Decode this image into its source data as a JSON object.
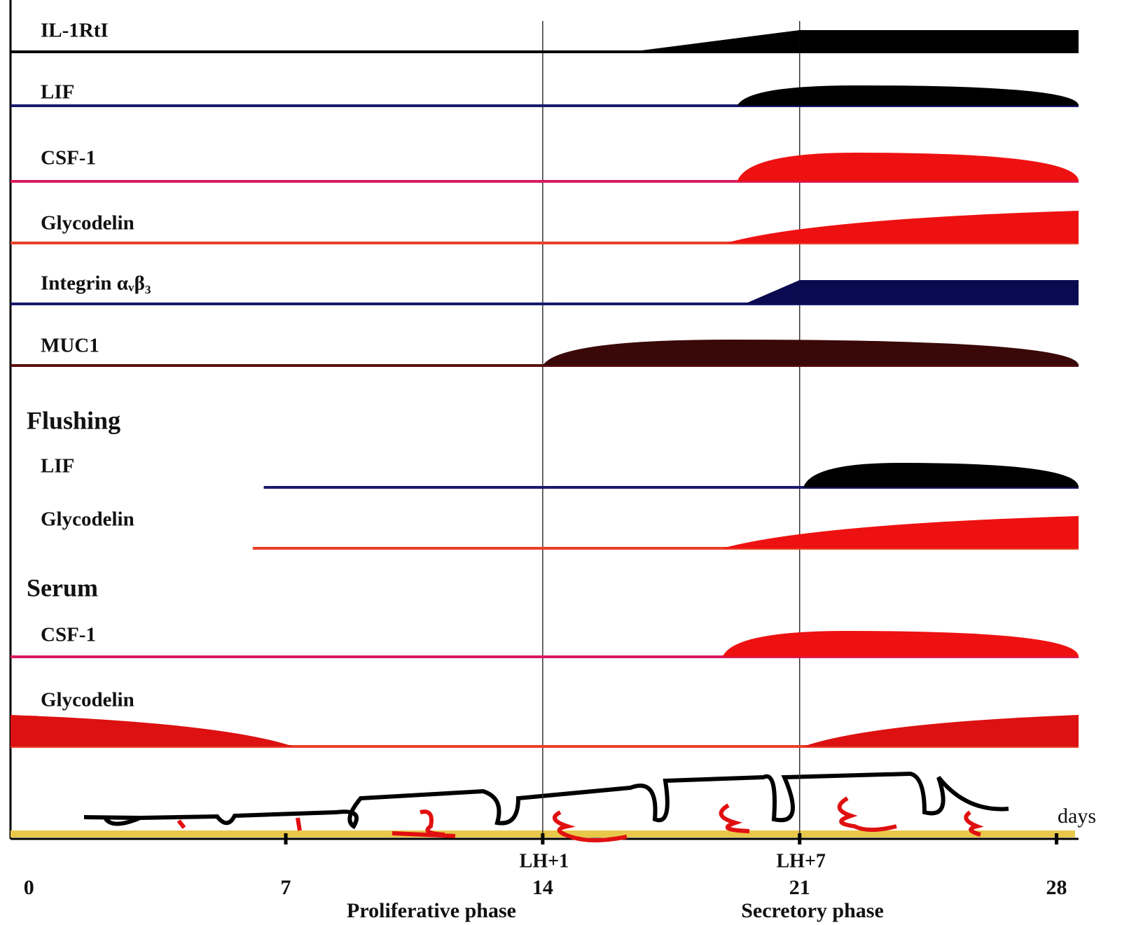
{
  "chart_data": {
    "type": "expression-timeline",
    "xlim": [
      -0.5,
      28.6
    ],
    "xticks": [
      0,
      7,
      14,
      21,
      28
    ],
    "x_unit_label": "days",
    "phase_markers": [
      {
        "day": 14,
        "label": "LH+1"
      },
      {
        "day": 21,
        "label": "LH+7"
      }
    ],
    "phases": [
      "Proliferative phase",
      "Secretory phase"
    ],
    "sections": [
      {
        "rows": [
          {
            "label": "IL-1RtI",
            "line_color": "#000000",
            "color": "#000000",
            "line_start": -0.5,
            "segments": [
              {
                "shape": "ramp",
                "from": 16.4,
                "to": 21
              },
              {
                "shape": "block",
                "from": 21,
                "to": 28.6
              }
            ]
          },
          {
            "label": "LIF",
            "line_color": "#1a1a6e",
            "color": "#000000",
            "line_start": -0.5,
            "segments": [
              {
                "shape": "dome",
                "from": 19.3,
                "to": 28.6
              }
            ]
          },
          {
            "label": "CSF-1",
            "line_color": "#d81b60",
            "color": "#ee1111",
            "line_start": -0.5,
            "segments": [
              {
                "shape": "dome",
                "from": 19.3,
                "to": 28.6
              }
            ]
          },
          {
            "label": "Glycodelin",
            "line_color": "#e8402a",
            "color": "#ee1111",
            "line_start": -0.5,
            "segments": [
              {
                "shape": "rise",
                "from": 19.0,
                "to": 28.6
              }
            ]
          },
          {
            "label": "Integrin αᵥβ₃",
            "line_color": "#1a1a6e",
            "color": "#0a0a50",
            "line_start": -0.5,
            "segments": [
              {
                "shape": "ramp",
                "from": 19.5,
                "to": 21
              },
              {
                "shape": "block",
                "from": 21,
                "to": 28.6
              }
            ]
          },
          {
            "label": "MUC1",
            "line_color": "#5a1010",
            "color": "#3a0808",
            "line_start": -0.5,
            "segments": [
              {
                "shape": "dome",
                "from": 14,
                "to": 28.6
              }
            ]
          }
        ]
      },
      {
        "title": "Flushing",
        "rows": [
          {
            "label": "LIF",
            "line_color": "#1a1a6e",
            "color": "#000000",
            "line_start": 6.4,
            "segments": [
              {
                "shape": "dome",
                "from": 21.1,
                "to": 28.6
              }
            ]
          },
          {
            "label": "Glycodelin",
            "line_color": "#e8402a",
            "color": "#ee1111",
            "line_start": 6.1,
            "segments": [
              {
                "shape": "rise",
                "from": 18.9,
                "to": 28.6
              }
            ]
          }
        ]
      },
      {
        "title": "Serum",
        "rows": [
          {
            "label": "CSF-1",
            "line_color": "#d81b60",
            "color": "#ee1111",
            "line_start": -0.5,
            "segments": [
              {
                "shape": "dome",
                "from": 18.9,
                "to": 28.6
              }
            ]
          },
          {
            "label": "Glycodelin",
            "line_color": "#e8402a",
            "color": "#dd1111",
            "line_start": -0.5,
            "segments": [
              {
                "shape": "fall",
                "from": -0.5,
                "to": 7.2
              },
              {
                "shape": "rise",
                "from": 21.1,
                "to": 28.6
              }
            ]
          }
        ]
      }
    ]
  }
}
